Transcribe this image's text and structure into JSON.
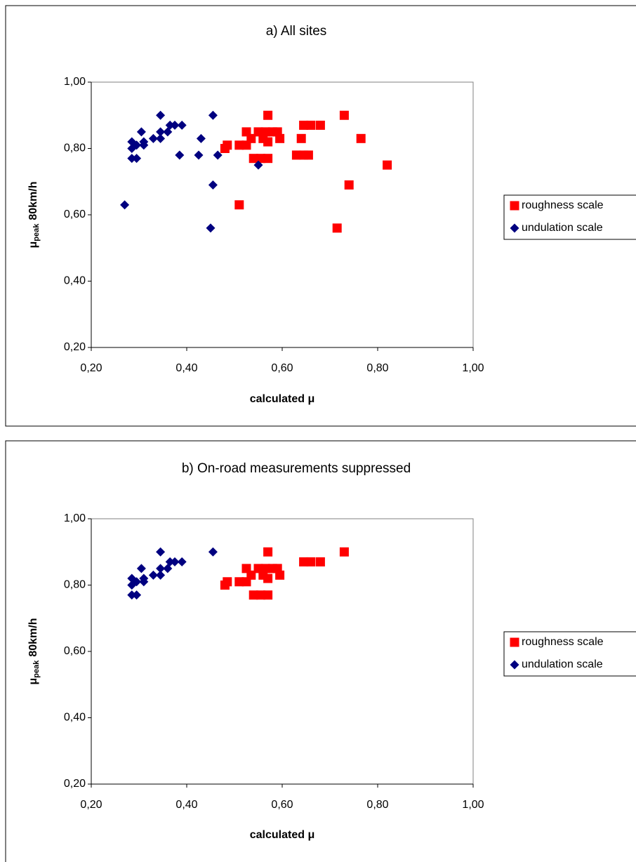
{
  "chart_data": [
    {
      "type": "scatter",
      "title": "a) All sites",
      "x_label": "calculated μ",
      "y_label": {
        "symbol": "μ",
        "subscript": "peak",
        "unit": "80km/h"
      },
      "xlim": [
        0.2,
        1.0
      ],
      "ylim": [
        0.2,
        1.0
      ],
      "xticks": [
        {
          "value": 0.2,
          "label": "0,20"
        },
        {
          "value": 0.4,
          "label": "0,40"
        },
        {
          "value": 0.6,
          "label": "0,60"
        },
        {
          "value": 0.8,
          "label": "0,80"
        },
        {
          "value": 1.0,
          "label": "1,00"
        }
      ],
      "yticks": [
        {
          "value": 0.2,
          "label": "0,20"
        },
        {
          "value": 0.4,
          "label": "0,40"
        },
        {
          "value": 0.6,
          "label": "0,60"
        },
        {
          "value": 0.8,
          "label": "0,80"
        },
        {
          "value": 1.0,
          "label": "1,00"
        }
      ],
      "grid": false,
      "legend": "right",
      "series": [
        {
          "name": "roughness scale",
          "color": "#ff0000",
          "marker": "square",
          "x": [
            0.57,
            0.73,
            0.645,
            0.66,
            0.68,
            0.525,
            0.55,
            0.565,
            0.58,
            0.59,
            0.535,
            0.56,
            0.595,
            0.64,
            0.765,
            0.51,
            0.525,
            0.57,
            0.485,
            0.48,
            0.54,
            0.555,
            0.57,
            0.63,
            0.645,
            0.655,
            0.82,
            0.74,
            0.51,
            0.715
          ],
          "values": [
            0.9,
            0.9,
            0.87,
            0.87,
            0.87,
            0.85,
            0.85,
            0.85,
            0.85,
            0.85,
            0.83,
            0.83,
            0.83,
            0.83,
            0.83,
            0.81,
            0.81,
            0.82,
            0.81,
            0.8,
            0.77,
            0.77,
            0.77,
            0.78,
            0.78,
            0.78,
            0.75,
            0.69,
            0.63,
            0.56
          ]
        },
        {
          "name": "undulation scale",
          "color": "#000080",
          "marker": "diamond",
          "x": [
            0.27,
            0.285,
            0.295,
            0.285,
            0.285,
            0.295,
            0.305,
            0.31,
            0.31,
            0.33,
            0.345,
            0.345,
            0.36,
            0.365,
            0.375,
            0.345,
            0.39,
            0.385,
            0.425,
            0.43,
            0.455,
            0.465,
            0.455,
            0.45,
            0.55
          ],
          "values": [
            0.63,
            0.77,
            0.77,
            0.82,
            0.8,
            0.81,
            0.85,
            0.82,
            0.81,
            0.83,
            0.85,
            0.83,
            0.85,
            0.87,
            0.87,
            0.9,
            0.87,
            0.78,
            0.78,
            0.83,
            0.9,
            0.78,
            0.69,
            0.56,
            0.75
          ]
        }
      ]
    },
    {
      "type": "scatter",
      "title": "b) On-road measurements suppressed",
      "x_label": "calculated μ",
      "y_label": {
        "symbol": "μ",
        "subscript": "peak",
        "unit": "80km/h"
      },
      "xlim": [
        0.2,
        1.0
      ],
      "ylim": [
        0.2,
        1.0
      ],
      "xticks": [
        {
          "value": 0.2,
          "label": "0,20"
        },
        {
          "value": 0.4,
          "label": "0,40"
        },
        {
          "value": 0.6,
          "label": "0,60"
        },
        {
          "value": 0.8,
          "label": "0,80"
        },
        {
          "value": 1.0,
          "label": "1,00"
        }
      ],
      "yticks": [
        {
          "value": 0.2,
          "label": "0,20"
        },
        {
          "value": 0.4,
          "label": "0,40"
        },
        {
          "value": 0.6,
          "label": "0,60"
        },
        {
          "value": 0.8,
          "label": "0,80"
        },
        {
          "value": 1.0,
          "label": "1,00"
        }
      ],
      "grid": false,
      "legend": "right",
      "series": [
        {
          "name": "roughness scale",
          "color": "#ff0000",
          "marker": "square",
          "x": [
            0.57,
            0.73,
            0.645,
            0.66,
            0.68,
            0.525,
            0.55,
            0.565,
            0.58,
            0.59,
            0.535,
            0.56,
            0.595,
            0.51,
            0.525,
            0.57,
            0.485,
            0.48,
            0.54,
            0.555,
            0.57
          ],
          "values": [
            0.9,
            0.9,
            0.87,
            0.87,
            0.87,
            0.85,
            0.85,
            0.85,
            0.85,
            0.85,
            0.83,
            0.83,
            0.83,
            0.81,
            0.81,
            0.82,
            0.81,
            0.8,
            0.77,
            0.77,
            0.77
          ]
        },
        {
          "name": "undulation scale",
          "color": "#000080",
          "marker": "diamond",
          "x": [
            0.285,
            0.295,
            0.285,
            0.285,
            0.295,
            0.305,
            0.31,
            0.31,
            0.33,
            0.345,
            0.345,
            0.36,
            0.365,
            0.375,
            0.345,
            0.39,
            0.455
          ],
          "values": [
            0.77,
            0.77,
            0.82,
            0.8,
            0.81,
            0.85,
            0.82,
            0.81,
            0.83,
            0.85,
            0.83,
            0.85,
            0.87,
            0.87,
            0.9,
            0.87,
            0.9
          ]
        }
      ]
    }
  ]
}
